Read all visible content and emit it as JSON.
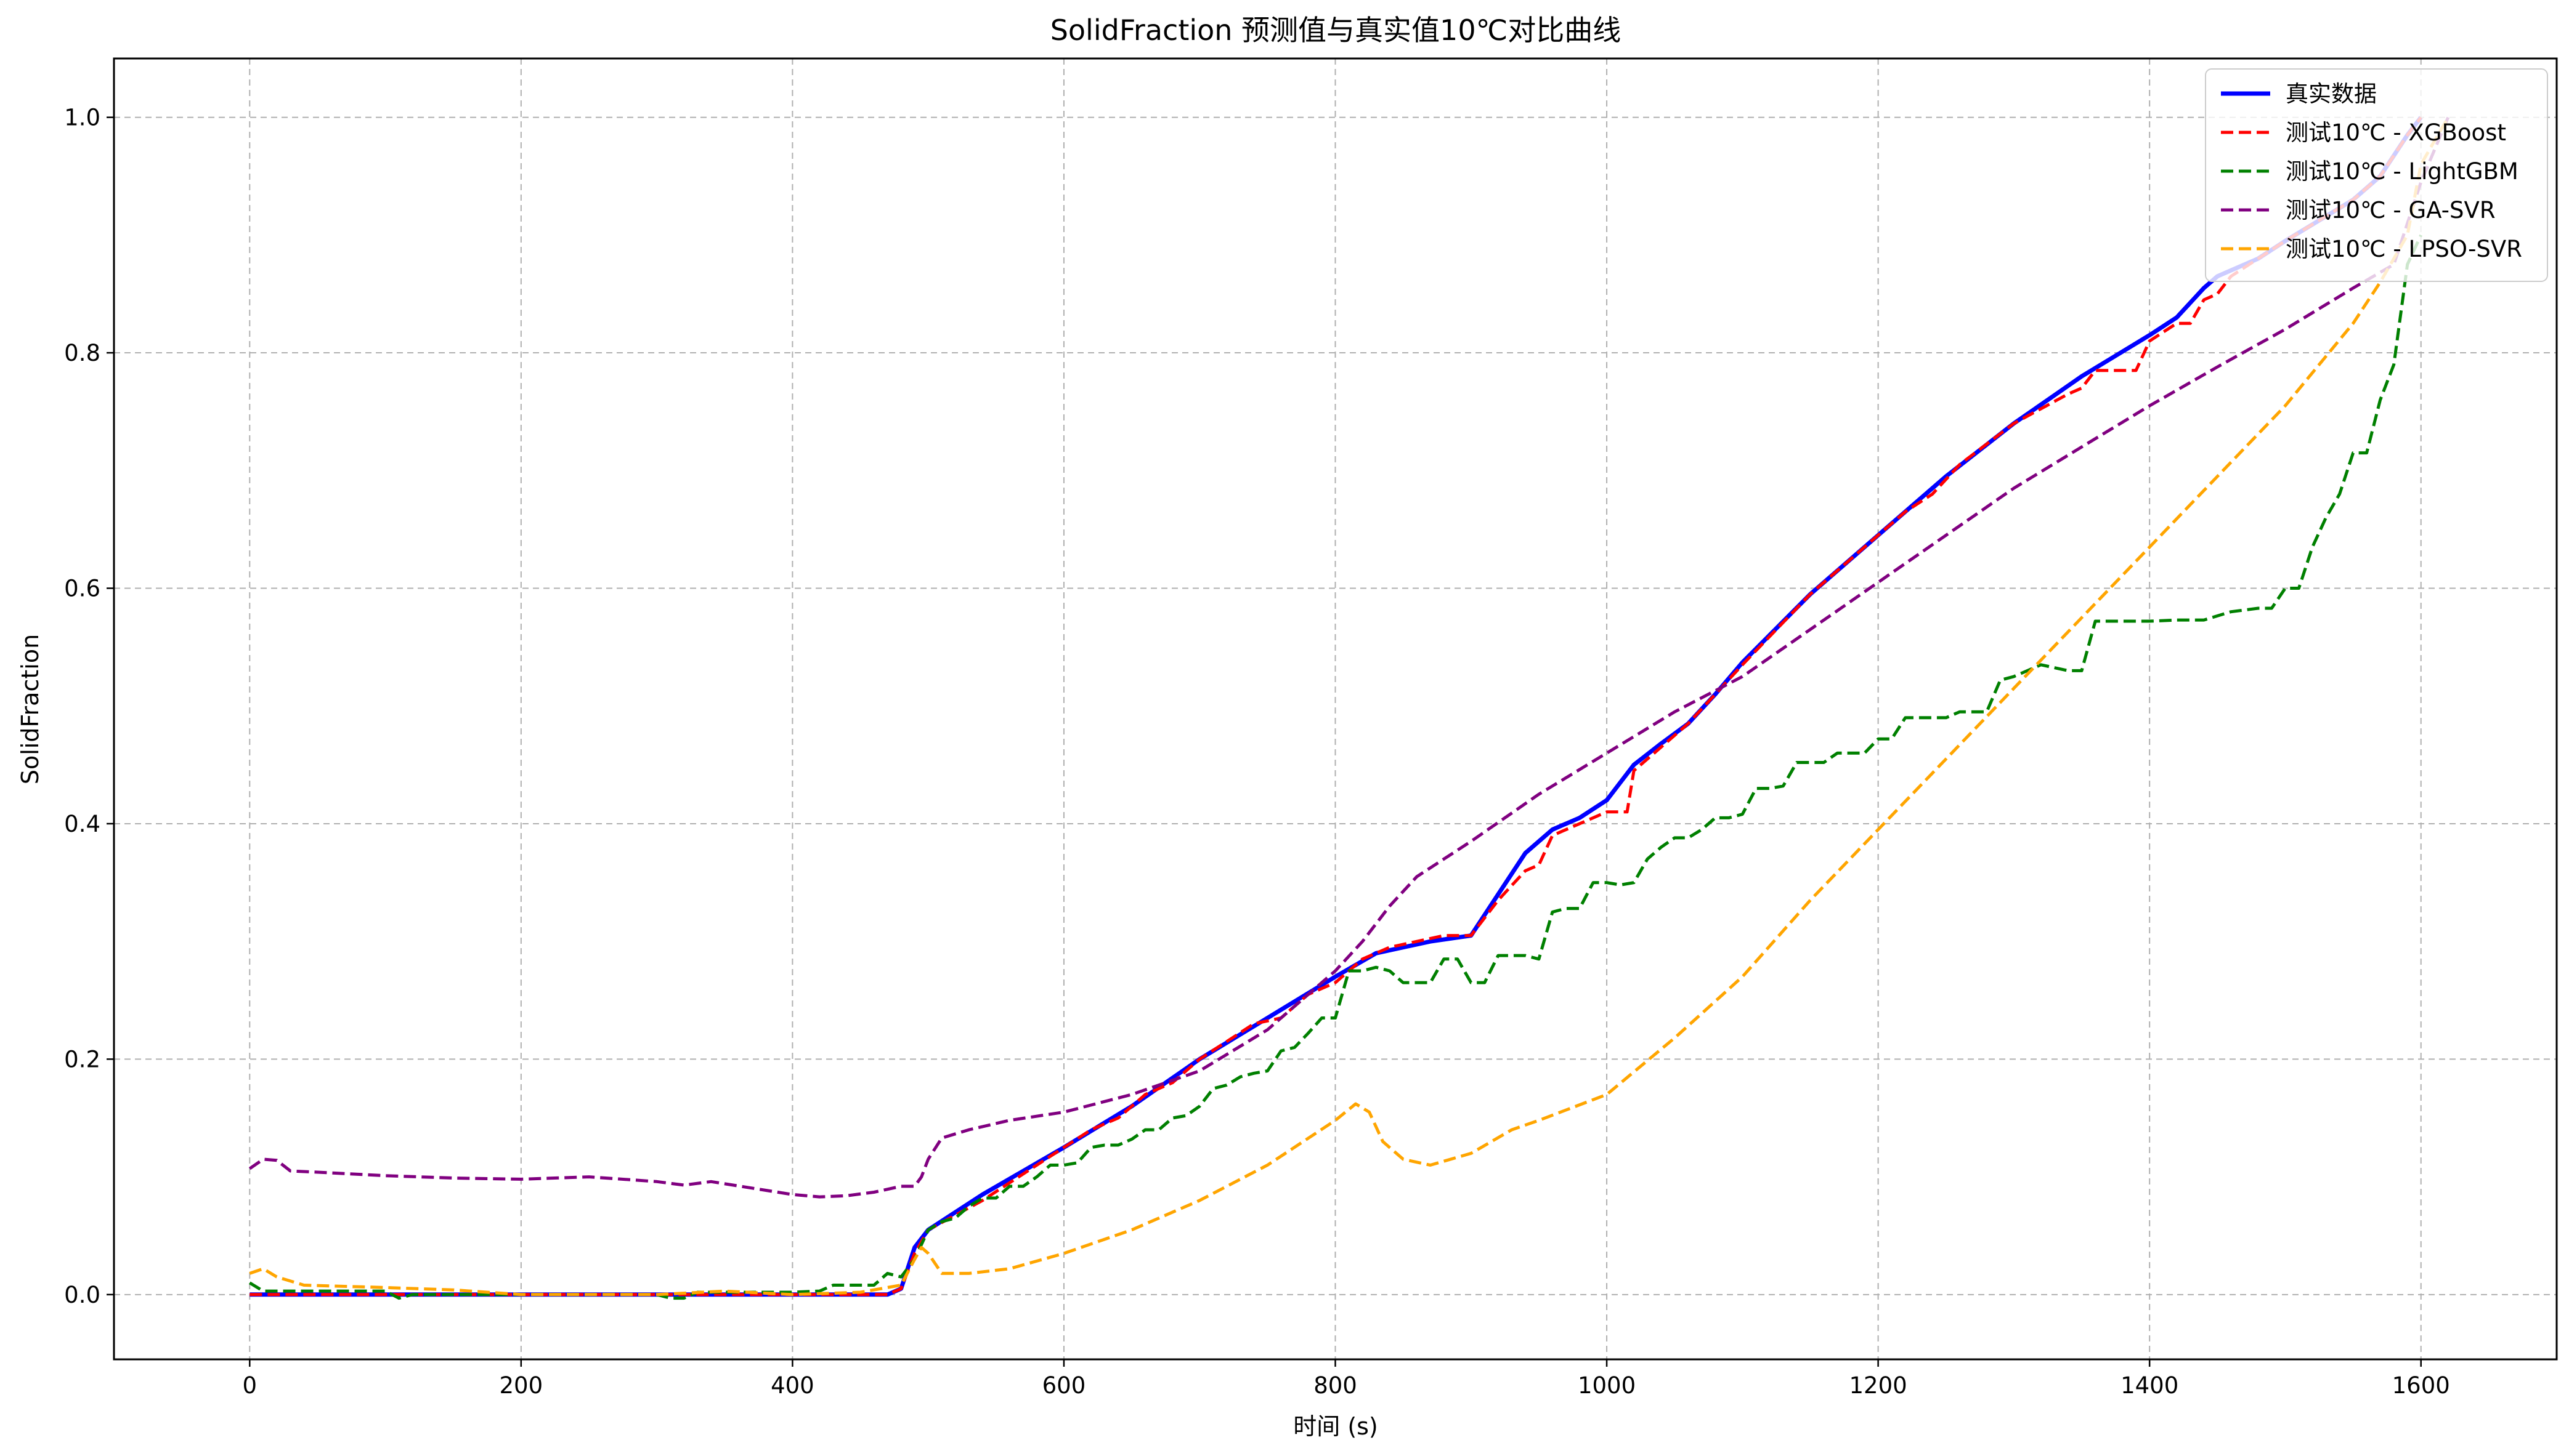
{
  "chart_data": {
    "type": "line",
    "title": "SolidFraction 预测值与真实值10℃对比曲线",
    "xlabel": "时间 (s)",
    "ylabel": "SolidFraction",
    "xlim": [
      -100,
      1700
    ],
    "ylim": [
      -0.055,
      1.05
    ],
    "xticks": [
      0,
      200,
      400,
      600,
      800,
      1000,
      1200,
      1400,
      1600
    ],
    "yticks": [
      0.0,
      0.2,
      0.4,
      0.6,
      0.8,
      1.0
    ],
    "xtick_labels": [
      "0",
      "200",
      "400",
      "600",
      "800",
      "1000",
      "1200",
      "1400",
      "1600"
    ],
    "ytick_labels": [
      "0.0",
      "0.2",
      "0.4",
      "0.6",
      "0.8",
      "1.0"
    ],
    "grid": true,
    "legend_position": "top-right",
    "series": [
      {
        "name": "真实数据",
        "color": "#0000ff",
        "style": "solid",
        "x": [
          0,
          100,
          200,
          300,
          400,
          470,
          480,
          490,
          500,
          540,
          600,
          650,
          700,
          750,
          800,
          830,
          870,
          900,
          920,
          940,
          960,
          980,
          1000,
          1010,
          1020,
          1040,
          1060,
          1080,
          1100,
          1150,
          1200,
          1250,
          1300,
          1350,
          1400,
          1420,
          1440,
          1450,
          1460,
          1480,
          1500,
          1550,
          1570,
          1590,
          1600
        ],
        "y": [
          0.0,
          0.0,
          0.0,
          0.0,
          0.0,
          0.0,
          0.005,
          0.04,
          0.055,
          0.085,
          0.125,
          0.16,
          0.2,
          0.235,
          0.27,
          0.29,
          0.3,
          0.305,
          0.34,
          0.375,
          0.395,
          0.405,
          0.42,
          0.435,
          0.45,
          0.468,
          0.485,
          0.51,
          0.537,
          0.595,
          0.645,
          0.695,
          0.74,
          0.78,
          0.815,
          0.83,
          0.855,
          0.865,
          0.87,
          0.88,
          0.895,
          0.93,
          0.95,
          0.985,
          1.0
        ]
      },
      {
        "name": "测试10℃ - XGBoost",
        "color": "#ff0000",
        "style": "dashed",
        "x": [
          0,
          470,
          480,
          490,
          500,
          540,
          560,
          580,
          600,
          620,
          640,
          660,
          680,
          700,
          720,
          740,
          760,
          780,
          800,
          820,
          840,
          860,
          880,
          900,
          920,
          940,
          950,
          960,
          980,
          990,
          1000,
          1010,
          1015,
          1020,
          1040,
          1060,
          1080,
          1100,
          1150,
          1200,
          1220,
          1240,
          1260,
          1300,
          1340,
          1350,
          1360,
          1380,
          1390,
          1400,
          1420,
          1430,
          1440,
          1450,
          1460,
          1480,
          1500,
          1550,
          1570,
          1590,
          1600
        ],
        "y": [
          0.0,
          0.0,
          0.005,
          0.035,
          0.055,
          0.08,
          0.095,
          0.11,
          0.125,
          0.14,
          0.15,
          0.17,
          0.18,
          0.2,
          0.215,
          0.23,
          0.235,
          0.255,
          0.265,
          0.285,
          0.295,
          0.3,
          0.305,
          0.305,
          0.335,
          0.36,
          0.365,
          0.39,
          0.4,
          0.405,
          0.41,
          0.41,
          0.41,
          0.445,
          0.465,
          0.485,
          0.51,
          0.535,
          0.595,
          0.645,
          0.665,
          0.68,
          0.705,
          0.74,
          0.765,
          0.77,
          0.785,
          0.785,
          0.785,
          0.81,
          0.825,
          0.825,
          0.845,
          0.85,
          0.865,
          0.88,
          0.895,
          0.93,
          0.95,
          0.985,
          1.0
        ]
      },
      {
        "name": "测试10℃ - LightGBM",
        "color": "#008000",
        "style": "dashed",
        "x": [
          0,
          10,
          100,
          110,
          120,
          200,
          300,
          310,
          320,
          330,
          400,
          420,
          430,
          460,
          470,
          480,
          490,
          500,
          510,
          520,
          530,
          540,
          550,
          560,
          570,
          580,
          590,
          600,
          610,
          620,
          630,
          640,
          650,
          660,
          670,
          680,
          690,
          700,
          710,
          720,
          730,
          740,
          750,
          760,
          770,
          780,
          790,
          800,
          810,
          820,
          830,
          840,
          850,
          860,
          870,
          880,
          890,
          900,
          910,
          920,
          930,
          940,
          950,
          960,
          970,
          980,
          990,
          1000,
          1010,
          1020,
          1030,
          1040,
          1050,
          1060,
          1070,
          1080,
          1090,
          1100,
          1110,
          1120,
          1130,
          1140,
          1150,
          1160,
          1170,
          1180,
          1190,
          1200,
          1210,
          1220,
          1230,
          1240,
          1250,
          1260,
          1270,
          1280,
          1290,
          1300,
          1320,
          1340,
          1350,
          1360,
          1370,
          1380,
          1400,
          1420,
          1440,
          1460,
          1480,
          1490,
          1500,
          1510,
          1520,
          1530,
          1540,
          1550,
          1560,
          1570,
          1580,
          1590,
          1600
        ],
        "y": [
          0.01,
          0.003,
          0.003,
          -0.003,
          0.0,
          0.0,
          0.0,
          -0.003,
          -0.003,
          0.002,
          0.002,
          0.003,
          0.008,
          0.008,
          0.018,
          0.015,
          0.03,
          0.055,
          0.062,
          0.065,
          0.075,
          0.082,
          0.082,
          0.092,
          0.092,
          0.1,
          0.11,
          0.11,
          0.112,
          0.125,
          0.127,
          0.127,
          0.132,
          0.14,
          0.14,
          0.15,
          0.152,
          0.16,
          0.175,
          0.178,
          0.185,
          0.188,
          0.19,
          0.207,
          0.21,
          0.222,
          0.235,
          0.235,
          0.275,
          0.275,
          0.278,
          0.275,
          0.265,
          0.265,
          0.265,
          0.285,
          0.285,
          0.265,
          0.265,
          0.288,
          0.288,
          0.288,
          0.285,
          0.325,
          0.328,
          0.328,
          0.35,
          0.35,
          0.348,
          0.35,
          0.37,
          0.38,
          0.388,
          0.388,
          0.395,
          0.405,
          0.405,
          0.408,
          0.43,
          0.43,
          0.432,
          0.452,
          0.452,
          0.452,
          0.46,
          0.46,
          0.46,
          0.472,
          0.472,
          0.49,
          0.49,
          0.49,
          0.49,
          0.495,
          0.495,
          0.495,
          0.522,
          0.525,
          0.535,
          0.53,
          0.53,
          0.572,
          0.572,
          0.572,
          0.572,
          0.573,
          0.573,
          0.58,
          0.583,
          0.583,
          0.6,
          0.6,
          0.635,
          0.66,
          0.68,
          0.715,
          0.715,
          0.76,
          0.79,
          0.875,
          0.9
        ]
      },
      {
        "name": "测试10℃ - GA-SVR",
        "color": "#800080",
        "style": "dashed",
        "x": [
          0,
          10,
          20,
          30,
          50,
          100,
          150,
          200,
          250,
          300,
          320,
          340,
          400,
          420,
          440,
          460,
          480,
          490,
          495,
          500,
          510,
          530,
          560,
          600,
          650,
          700,
          750,
          800,
          820,
          840,
          860,
          900,
          950,
          1000,
          1050,
          1100,
          1150,
          1200,
          1250,
          1300,
          1350,
          1400,
          1450,
          1500,
          1550,
          1580,
          1600,
          1620
        ],
        "y": [
          0.107,
          0.115,
          0.114,
          0.105,
          0.104,
          0.101,
          0.099,
          0.098,
          0.1,
          0.096,
          0.093,
          0.096,
          0.085,
          0.083,
          0.084,
          0.087,
          0.092,
          0.092,
          0.1,
          0.115,
          0.133,
          0.14,
          0.148,
          0.155,
          0.17,
          0.19,
          0.225,
          0.275,
          0.3,
          0.33,
          0.355,
          0.385,
          0.425,
          0.46,
          0.495,
          0.525,
          0.565,
          0.605,
          0.645,
          0.685,
          0.72,
          0.755,
          0.788,
          0.82,
          0.855,
          0.875,
          0.945,
          1.0
        ]
      },
      {
        "name": "测试10℃ - LPSO-SVR",
        "color": "#ffa500",
        "style": "dashed",
        "x": [
          0,
          10,
          20,
          40,
          100,
          150,
          200,
          250,
          300,
          350,
          400,
          450,
          480,
          490,
          495,
          500,
          510,
          530,
          560,
          600,
          650,
          700,
          750,
          800,
          815,
          825,
          835,
          850,
          870,
          900,
          930,
          950,
          1000,
          1050,
          1100,
          1150,
          1200,
          1250,
          1300,
          1350,
          1400,
          1450,
          1500,
          1550,
          1570,
          1590,
          1600,
          1620
        ],
        "y": [
          0.018,
          0.022,
          0.015,
          0.008,
          0.006,
          0.004,
          0.0,
          0.0,
          0.0,
          0.003,
          0.0,
          0.002,
          0.008,
          0.03,
          0.04,
          0.035,
          0.018,
          0.018,
          0.022,
          0.035,
          0.055,
          0.08,
          0.11,
          0.148,
          0.162,
          0.155,
          0.13,
          0.115,
          0.11,
          0.12,
          0.14,
          0.148,
          0.17,
          0.218,
          0.27,
          0.335,
          0.395,
          0.455,
          0.515,
          0.575,
          0.635,
          0.695,
          0.755,
          0.825,
          0.86,
          0.9,
          0.96,
          1.0
        ]
      }
    ]
  }
}
